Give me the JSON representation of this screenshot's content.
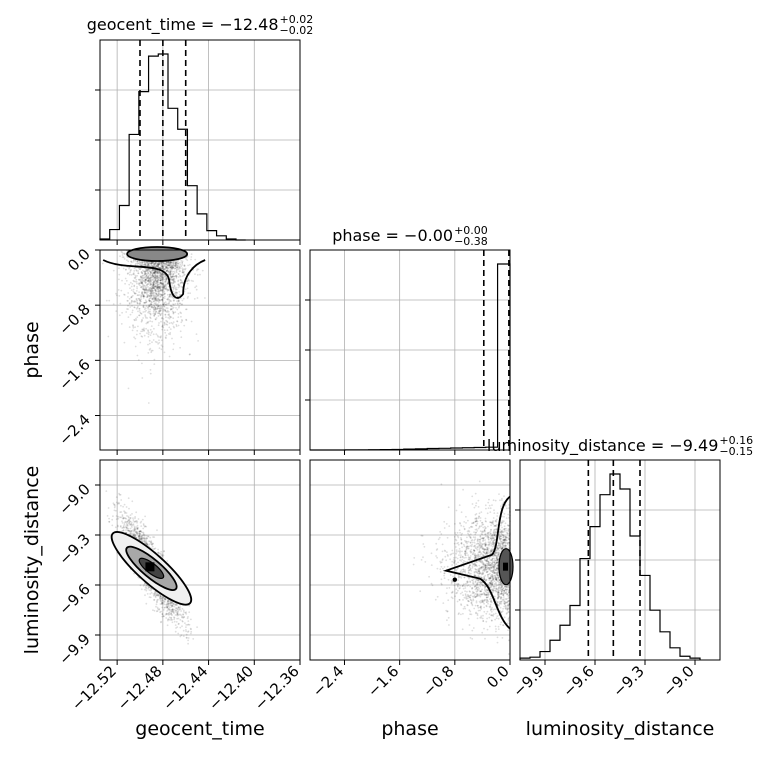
{
  "chart_data": {
    "type": "corner",
    "parameters": [
      "geocent_time",
      "phase",
      "luminosity_distance"
    ],
    "titles": [
      {
        "param": "geocent_time",
        "base": "geocent_time = −12.48",
        "plus": "+0.02",
        "minus": "−0.02"
      },
      {
        "param": "phase",
        "base": "phase = −0.00",
        "plus": "+0.00",
        "minus": "−0.38"
      },
      {
        "param": "luminosity_distance",
        "base": "luminosity_distance = −9.49",
        "plus": "+0.16",
        "minus": "−0.15"
      }
    ],
    "axis_labels": {
      "x": [
        "geocent_time",
        "phase",
        "luminosity_distance"
      ],
      "y": [
        "phase",
        "luminosity_distance"
      ]
    },
    "ranges": {
      "geocent_time": [
        -12.535,
        -12.36
      ],
      "phase": [
        -2.9,
        0.0
      ],
      "luminosity_distance": [
        -10.05,
        -8.85
      ]
    },
    "ticks": {
      "geocent_time": [
        "−12.52",
        "−12.48",
        "−12.44",
        "−12.40",
        "−12.36"
      ],
      "geocent_time_values": [
        -12.52,
        -12.48,
        -12.44,
        -12.4,
        -12.36
      ],
      "phase": [
        "−2.4",
        "−1.6",
        "−0.8",
        "0.0"
      ],
      "phase_values": [
        -2.4,
        -1.6,
        -0.8,
        0.0
      ],
      "luminosity_distance": [
        "−9.9",
        "−9.6",
        "−9.3",
        "−9.0"
      ],
      "luminosity_distance_values": [
        -9.9,
        -9.6,
        -9.3,
        -9.0
      ]
    },
    "quantiles": {
      "geocent_time": [
        -12.5,
        -12.48,
        -12.46
      ],
      "phase": [
        -0.38,
        -0.0,
        0.0
      ],
      "luminosity_distance": [
        -9.64,
        -9.49,
        -9.33
      ]
    },
    "histograms": {
      "geocent_time": {
        "edges": [
          -12.535,
          -12.5265,
          -12.518,
          -12.5095,
          -12.501,
          -12.4925,
          -12.484,
          -12.4755,
          -12.467,
          -12.4585,
          -12.45,
          -12.4415,
          -12.433,
          -12.4245,
          -12.416,
          -12.4075
        ],
        "counts": [
          1,
          10,
          33,
          101,
          142,
          176,
          178,
          126,
          106,
          52,
          25,
          9,
          4,
          1,
          0
        ]
      },
      "phase": {
        "edges": [
          -2.9,
          -2.73,
          -2.56,
          -2.39,
          -2.22,
          -2.05,
          -1.88,
          -1.71,
          -1.54,
          -1.37,
          -1.2,
          -1.03,
          -0.86,
          -0.69,
          -0.52,
          -0.35,
          -0.18,
          0.0
        ],
        "counts": [
          0,
          0,
          0,
          1,
          1,
          2,
          3,
          5,
          8,
          10,
          13,
          15,
          18,
          20,
          22,
          25,
          1650
        ]
      },
      "luminosity_distance": {
        "edges": [
          -10.05,
          -9.99,
          -9.93,
          -9.87,
          -9.81,
          -9.75,
          -9.69,
          -9.63,
          -9.57,
          -9.51,
          -9.45,
          -9.39,
          -9.33,
          -9.27,
          -9.21,
          -9.15,
          -9.09,
          -9.03,
          -8.97
        ],
        "counts": [
          2,
          3,
          9,
          21,
          37,
          58,
          108,
          142,
          176,
          198,
          182,
          132,
          90,
          53,
          30,
          13,
          4,
          2
        ]
      }
    },
    "hist2d": {
      "geocent_time_vs_phase": {
        "center": [
          -12.485,
          -0.02
        ],
        "cov": [
          [
            0.00016,
            -0.00035
          ],
          [
            -0.00035,
            0.18
          ]
        ]
      },
      "geocent_time_vs_luminosity_distance": {
        "center": [
          -12.49,
          -9.5
        ],
        "cov": [
          [
            0.00018,
            -0.0018
          ],
          [
            -0.0018,
            0.024
          ]
        ]
      },
      "phase_vs_luminosity_distance": {
        "center": [
          -0.05,
          -9.49
        ],
        "cov": [
          [
            0.2,
            0.0
          ],
          [
            0.0,
            0.024
          ]
        ]
      }
    },
    "grid": true
  }
}
